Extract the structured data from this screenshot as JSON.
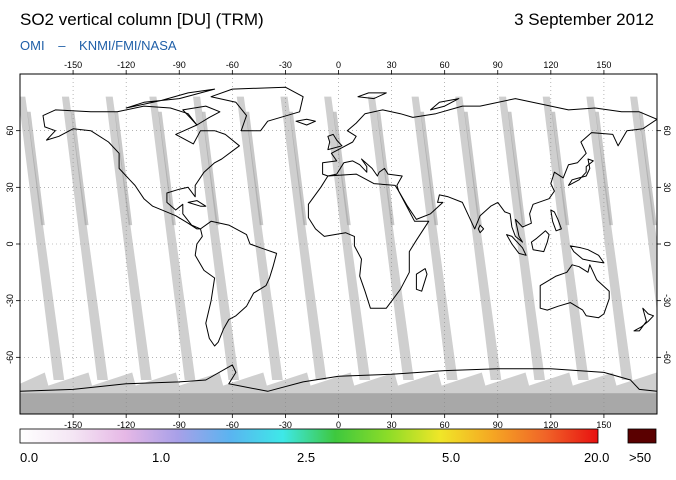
{
  "header": {
    "title": "SO2 vertical column [DU] (TRM)",
    "date": "3 September 2012",
    "credit": [
      "OMI",
      "–",
      "KNMI/FMI/NASA"
    ]
  },
  "map": {
    "projection": "equirectangular",
    "lon_range": [
      -180,
      180
    ],
    "lat_range": [
      -90,
      90
    ],
    "lon_ticks": [
      "-150",
      "-120",
      "-90",
      "-60",
      "-30",
      "0",
      "30",
      "60",
      "90",
      "120",
      "150"
    ],
    "lat_ticks": [
      "60",
      "30",
      "0",
      "-30",
      "-60"
    ],
    "grid": true,
    "colors": {
      "ocean": "#ffffff",
      "swath_gap": "#cfcfcf",
      "swath_dark": "#9a9a9a",
      "polar_night": "#a8a8a8",
      "coast": "#000000"
    }
  },
  "colorbar": {
    "labels": [
      "0.0",
      "1.0",
      "2.5",
      "5.0",
      "20.0"
    ],
    "overflow_label": ">50",
    "overflow_color": "#5a0000",
    "gradient": [
      "#ffffff",
      "#f4e6f4",
      "#e6b8e6",
      "#a8a0e8",
      "#5ab4f0",
      "#3ee8e8",
      "#3ec83e",
      "#8cdc28",
      "#f0e628",
      "#f5a623",
      "#f06428",
      "#e81010"
    ]
  }
}
